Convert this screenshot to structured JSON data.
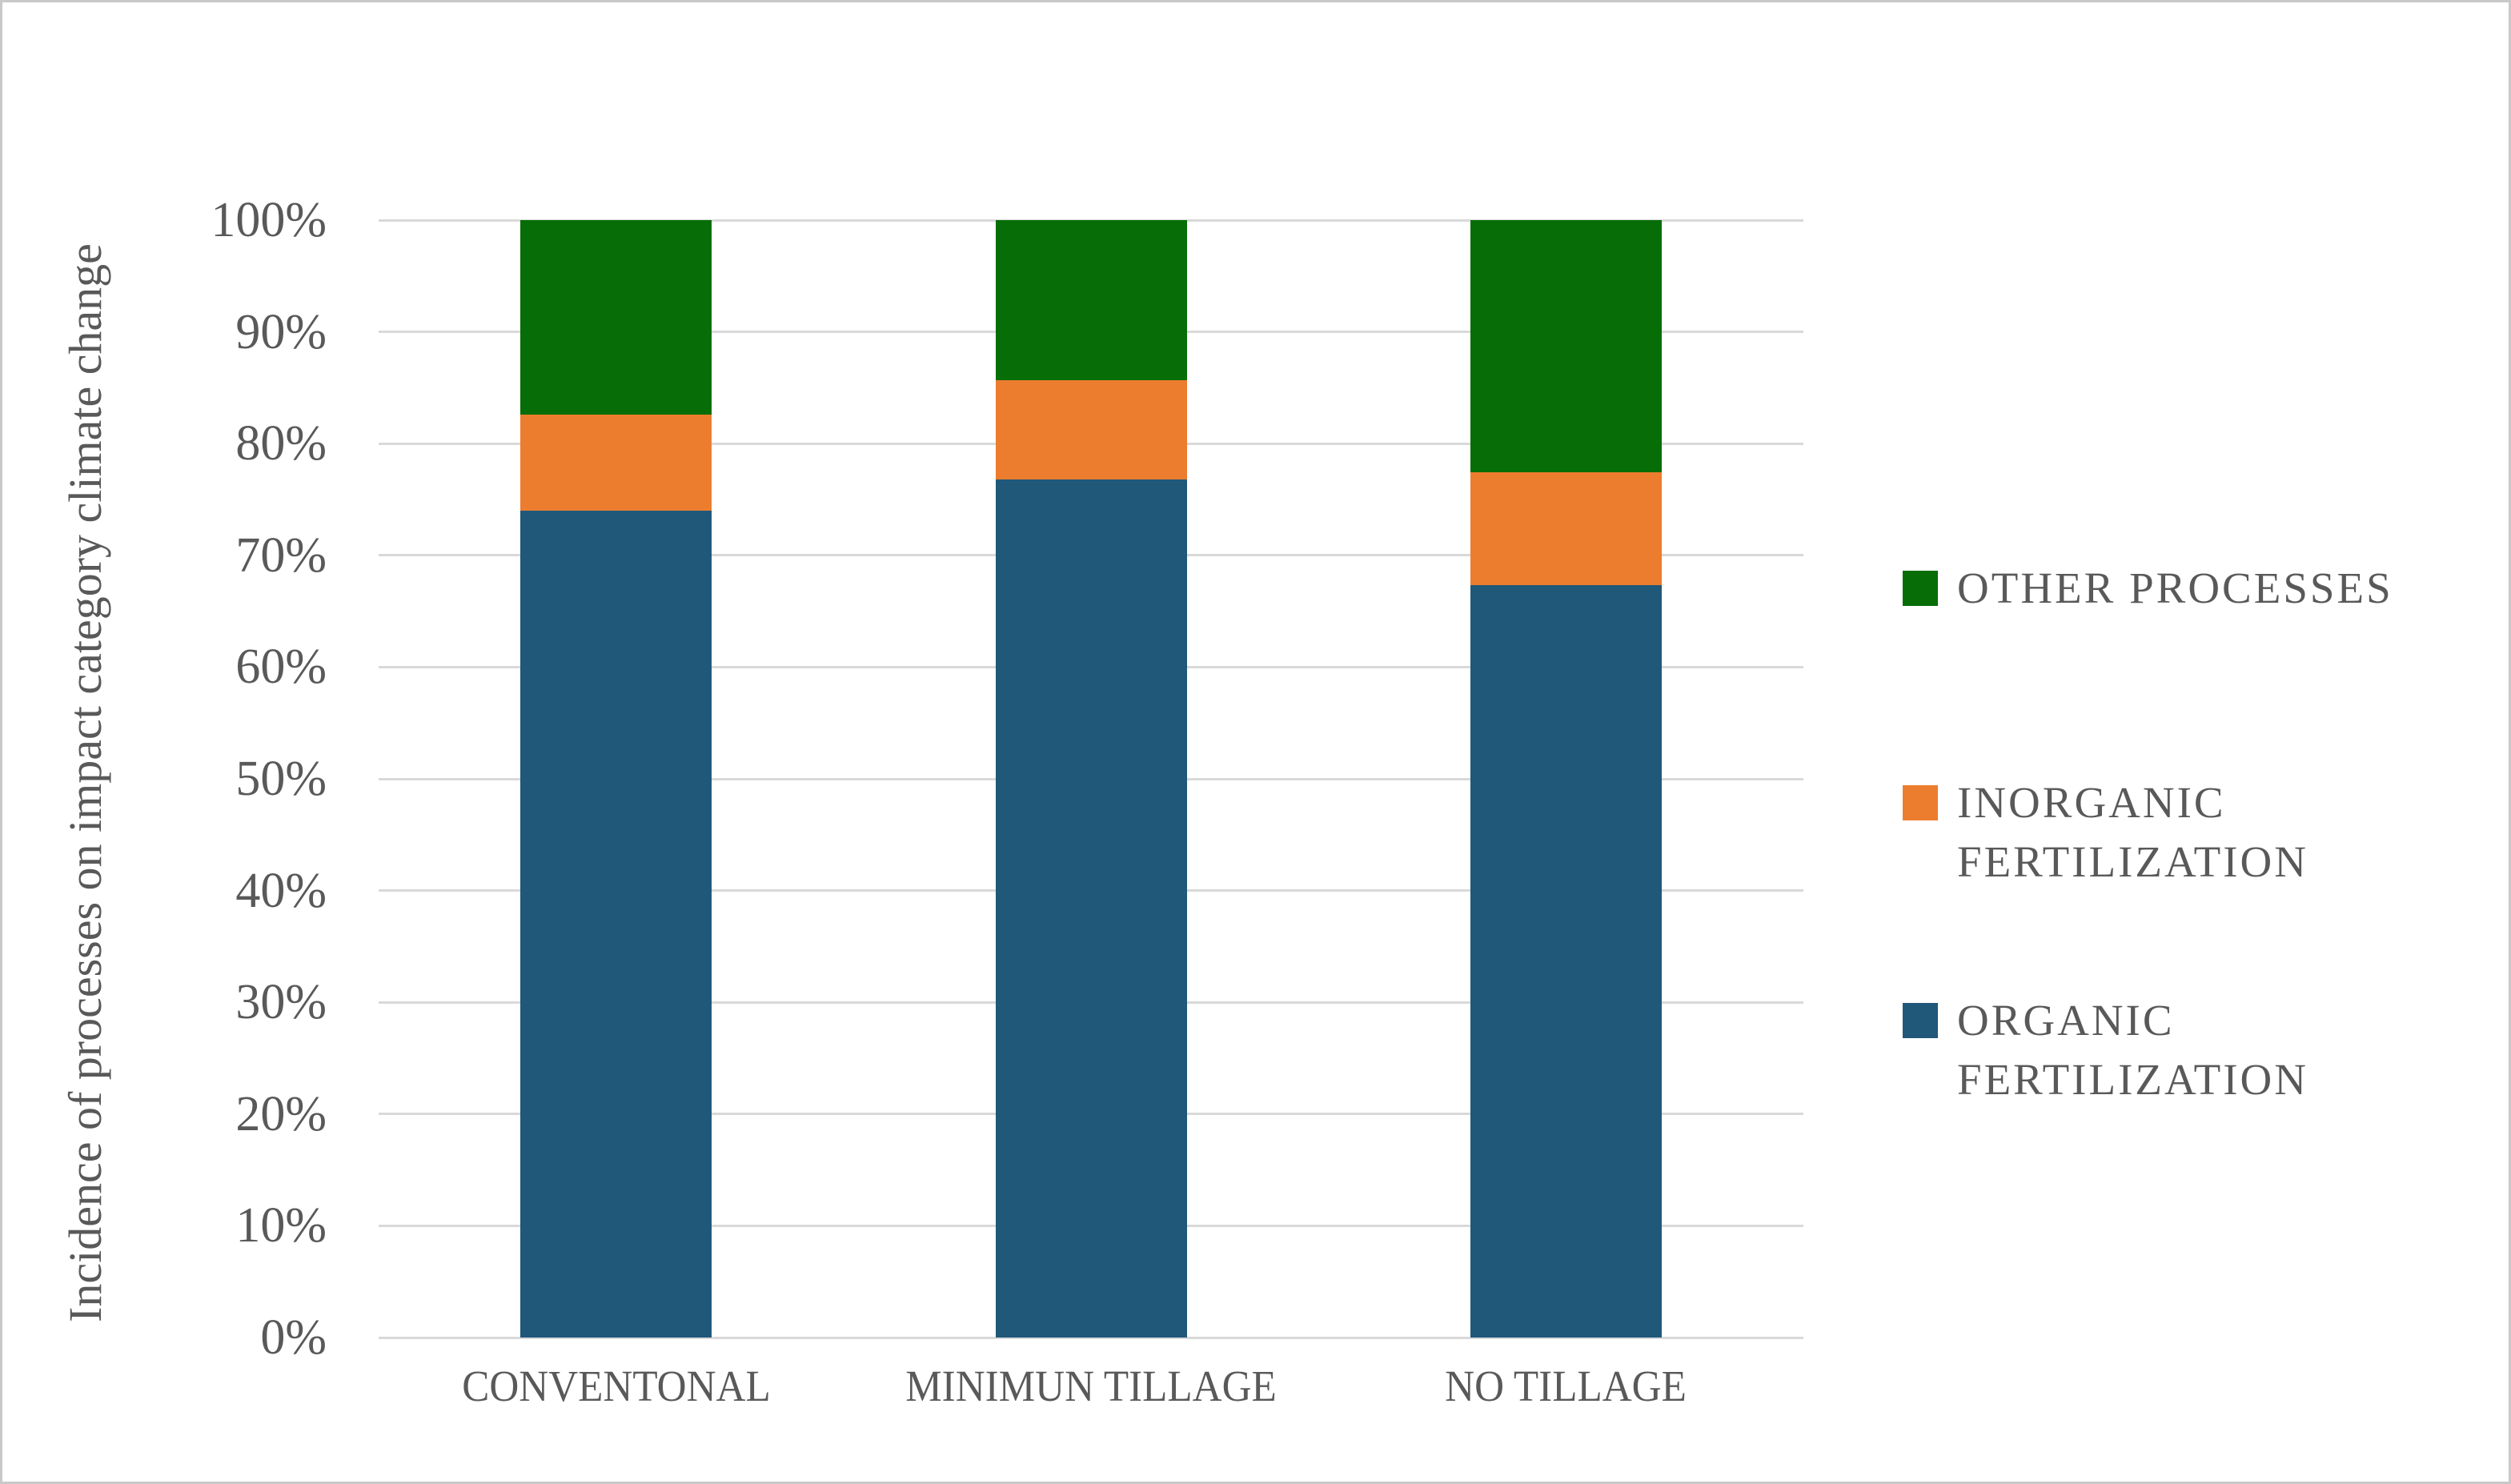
{
  "figure": {
    "background": "#ffffff",
    "border_color": "#c9c9c9"
  },
  "chart_data": {
    "type": "bar",
    "stacked": true,
    "units": "percent",
    "title": "",
    "xlabel": "",
    "ylabel": "Incidence of processes on impact category climate change",
    "categories": [
      "CONVENTONAL",
      "MINIMUN TILLAGE",
      "NO TILLAGE"
    ],
    "series": [
      {
        "name": "ORGANIC FERTILIZATION",
        "color": "#20587a",
        "values": [
          74.0,
          76.8,
          67.3
        ]
      },
      {
        "name": "INORGANIC FERTILIZATION",
        "color": "#ec7d2e",
        "values": [
          8.6,
          8.9,
          10.1
        ]
      },
      {
        "name": "OTHER PROCESSES",
        "color": "#076d07",
        "values": [
          17.4,
          14.3,
          22.6
        ]
      }
    ],
    "ylim": [
      0,
      100
    ],
    "y_ticks": [
      "0%",
      "10%",
      "20%",
      "30%",
      "40%",
      "50%",
      "60%",
      "70%",
      "80%",
      "90%",
      "100%"
    ],
    "grid": true,
    "gridline_color": "#d9d9d9",
    "text_color": "#595959",
    "legend_position": "right",
    "legend_order": [
      "OTHER PROCESSES",
      "INORGANIC FERTILIZATION",
      "ORGANIC FERTILIZATION"
    ]
  }
}
